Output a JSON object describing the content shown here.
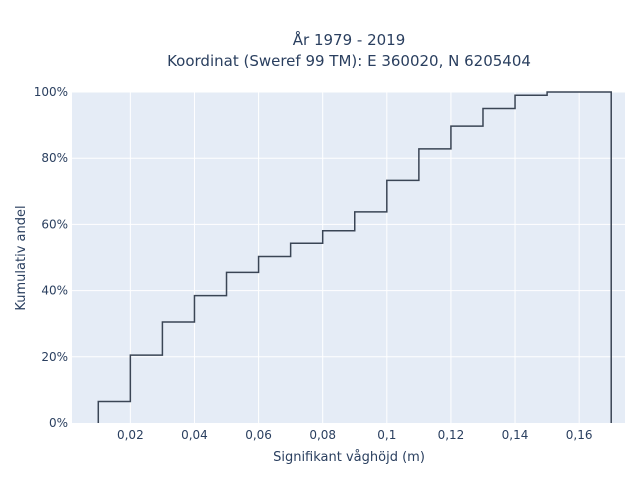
{
  "chart_data": {
    "type": "line",
    "subtype": "cumulative-step",
    "title_line1": "År 1979 - 2019",
    "title_line2": "Koordinat (Sweref 99 TM): E 360020, N 6205404",
    "xlabel": "Signifikant våghöjd (m)",
    "ylabel": "Kumulativ andel",
    "x_ticks": [
      0.02,
      0.04,
      0.06,
      0.08,
      0.1,
      0.12,
      0.14,
      0.16
    ],
    "x_tick_labels": [
      "0,02",
      "0,04",
      "0,06",
      "0,08",
      "0,1",
      "0,12",
      "0,14",
      "0,16"
    ],
    "y_ticks": [
      0,
      20,
      40,
      60,
      80,
      100
    ],
    "y_tick_labels": [
      "0%",
      "20%",
      "40%",
      "60%",
      "80%",
      "100%"
    ],
    "xlim": [
      0.0018,
      0.1743
    ],
    "ylim": [
      0,
      100
    ],
    "grid": true,
    "line_color": "#3a4555",
    "bin_edges": [
      0.01,
      0.02,
      0.03,
      0.04,
      0.05,
      0.06,
      0.07,
      0.08,
      0.09,
      0.1,
      0.11,
      0.12,
      0.13,
      0.14,
      0.15,
      0.16,
      0.17
    ],
    "cumulative_percent": [
      6.5,
      20.5,
      30.5,
      38.5,
      45.5,
      50.3,
      54.3,
      58.1,
      63.8,
      73.3,
      82.8,
      89.7,
      95.0,
      99.0,
      100.0,
      100.0
    ]
  }
}
